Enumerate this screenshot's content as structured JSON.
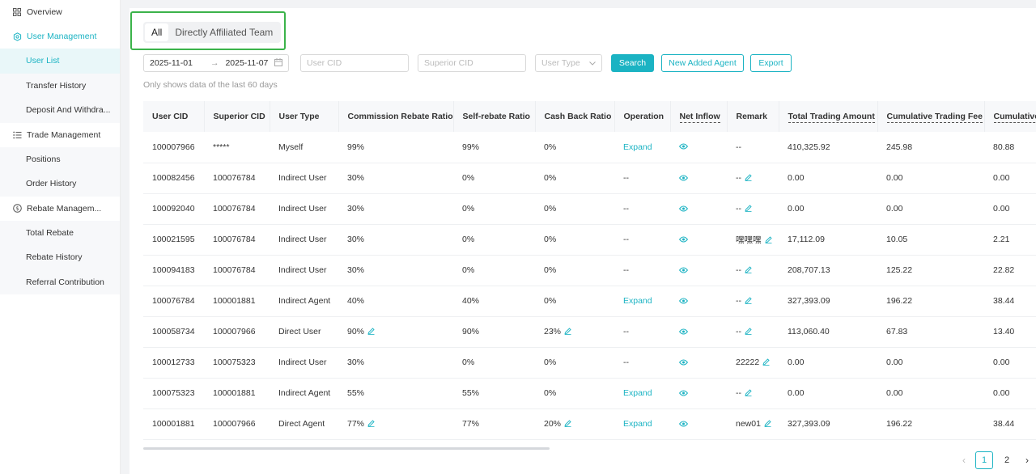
{
  "sidebar": {
    "overview": "Overview",
    "user_management": "User Management",
    "user_management_items": [
      "User List",
      "Transfer History",
      "Deposit And Withdra..."
    ],
    "trade_management": "Trade Management",
    "trade_management_items": [
      "Positions",
      "Order History"
    ],
    "rebate_management": "Rebate Managem...",
    "rebate_management_items": [
      "Total Rebate",
      "Rebate History",
      "Referral Contribution"
    ]
  },
  "tabs": [
    "All",
    "Directly Affiliated Team"
  ],
  "filters": {
    "start_date": "2025-11-01",
    "end_date": "2025-11-07",
    "user_cid_placeholder": "User CID",
    "superior_cid_placeholder": "Superior CID",
    "user_type_placeholder": "User Type",
    "search": "Search",
    "new_added_agent": "New Added Agent",
    "export": "Export"
  },
  "hint": "Only shows data of the last 60 days",
  "table": {
    "columns": [
      "User CID",
      "Superior CID",
      "User Type",
      "Commission Rebate Ratio",
      "Self-rebate Ratio",
      "Cash Back Ratio",
      "Operation",
      "Net Inflow",
      "Remark",
      "Total Trading Amount",
      "Cumulative Trading Fee",
      "Cumulative"
    ],
    "rows": [
      {
        "cid": "100007966",
        "superior": "*****",
        "type": "Myself",
        "commission": "99%",
        "self": "99%",
        "cashback": "0%",
        "operation": "Expand",
        "remark": "--",
        "total": "410,325.92",
        "fee": "245.98",
        "cum": "80.88",
        "editC": false,
        "editCB": false,
        "editR": false
      },
      {
        "cid": "100082456",
        "superior": "100076784",
        "type": "Indirect User",
        "commission": "30%",
        "self": "0%",
        "cashback": "0%",
        "operation": "--",
        "remark": "--",
        "total": "0.00",
        "fee": "0.00",
        "cum": "0.00",
        "editC": false,
        "editCB": false,
        "editR": true
      },
      {
        "cid": "100092040",
        "superior": "100076784",
        "type": "Indirect User",
        "commission": "30%",
        "self": "0%",
        "cashback": "0%",
        "operation": "--",
        "remark": "--",
        "total": "0.00",
        "fee": "0.00",
        "cum": "0.00",
        "editC": false,
        "editCB": false,
        "editR": true
      },
      {
        "cid": "100021595",
        "superior": "100076784",
        "type": "Indirect User",
        "commission": "30%",
        "self": "0%",
        "cashback": "0%",
        "operation": "--",
        "remark": "嘿嘿嘿",
        "total": "17,112.09",
        "fee": "10.05",
        "cum": "2.21",
        "editC": false,
        "editCB": false,
        "editR": true
      },
      {
        "cid": "100094183",
        "superior": "100076784",
        "type": "Indirect User",
        "commission": "30%",
        "self": "0%",
        "cashback": "0%",
        "operation": "--",
        "remark": "--",
        "total": "208,707.13",
        "fee": "125.22",
        "cum": "22.82",
        "editC": false,
        "editCB": false,
        "editR": true
      },
      {
        "cid": "100076784",
        "superior": "100001881",
        "type": "Indirect Agent",
        "commission": "40%",
        "self": "40%",
        "cashback": "0%",
        "operation": "Expand",
        "remark": "--",
        "total": "327,393.09",
        "fee": "196.22",
        "cum": "38.44",
        "editC": false,
        "editCB": false,
        "editR": true
      },
      {
        "cid": "100058734",
        "superior": "100007966",
        "type": "Direct User",
        "commission": "90%",
        "self": "90%",
        "cashback": "23%",
        "operation": "--",
        "remark": "--",
        "total": "113,060.40",
        "fee": "67.83",
        "cum": "13.40",
        "editC": true,
        "editCB": true,
        "editR": true
      },
      {
        "cid": "100012733",
        "superior": "100075323",
        "type": "Indirect User",
        "commission": "30%",
        "self": "0%",
        "cashback": "0%",
        "operation": "--",
        "remark": "22222",
        "total": "0.00",
        "fee": "0.00",
        "cum": "0.00",
        "editC": false,
        "editCB": false,
        "editR": true
      },
      {
        "cid": "100075323",
        "superior": "100001881",
        "type": "Indirect Agent",
        "commission": "55%",
        "self": "55%",
        "cashback": "0%",
        "operation": "Expand",
        "remark": "--",
        "total": "0.00",
        "fee": "0.00",
        "cum": "0.00",
        "editC": false,
        "editCB": false,
        "editR": true
      },
      {
        "cid": "100001881",
        "superior": "100007966",
        "type": "Direct Agent",
        "commission": "77%",
        "self": "77%",
        "cashback": "20%",
        "operation": "Expand",
        "remark": "new01",
        "total": "327,393.09",
        "fee": "196.22",
        "cum": "38.44",
        "editC": true,
        "editCB": true,
        "editR": true
      }
    ]
  },
  "pagination": {
    "pages": [
      "1",
      "2"
    ],
    "current": "1"
  },
  "colors": {
    "accent": "#1bb3c3",
    "highlight": "#3bb34a"
  }
}
